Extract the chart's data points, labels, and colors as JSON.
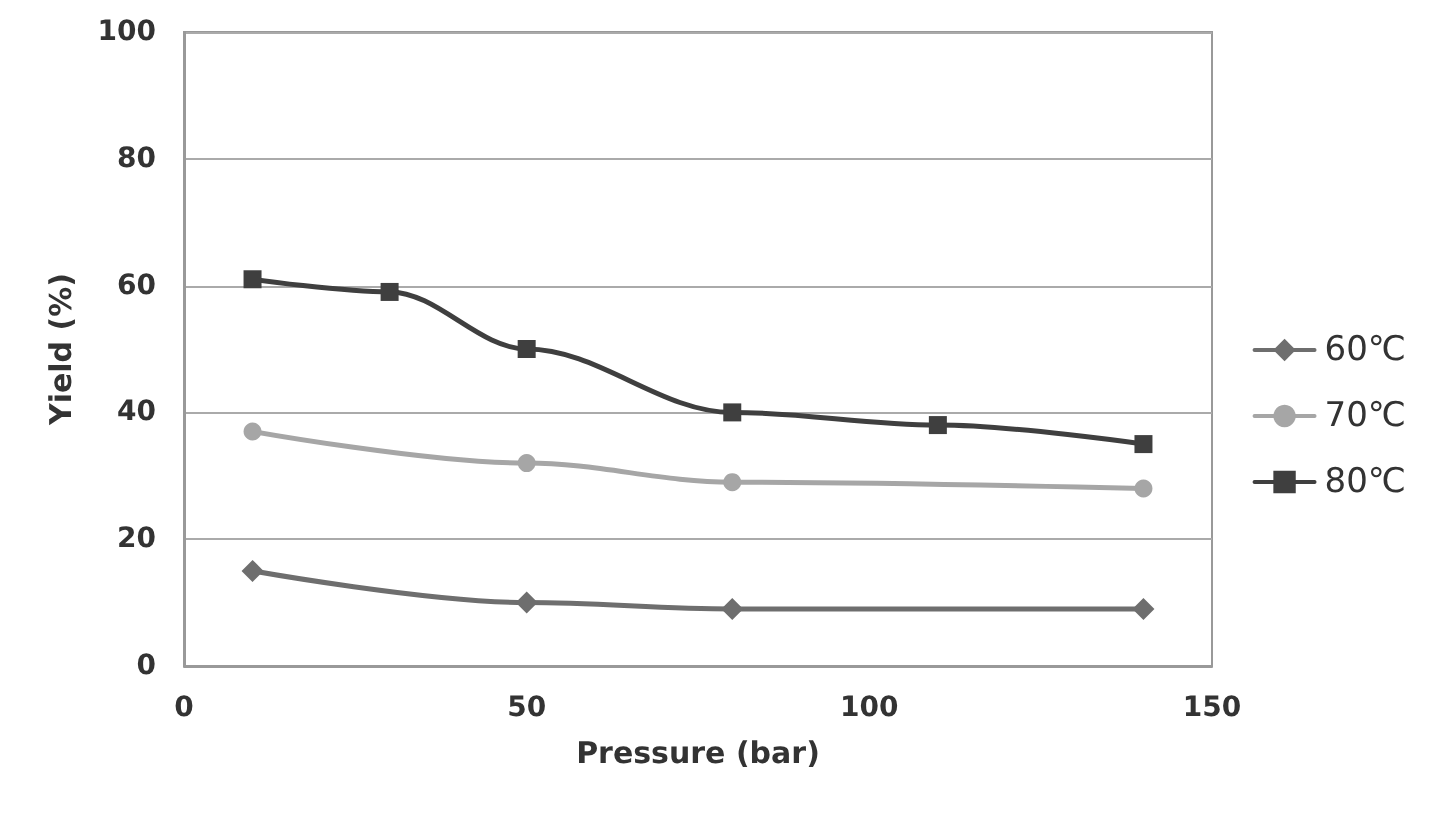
{
  "chart_data": {
    "type": "line",
    "xlabel": "Pressure (bar)",
    "ylabel": "Yield (%)",
    "xlim": [
      0,
      150
    ],
    "xticks": [
      0,
      50,
      100,
      150
    ],
    "ylim": [
      0,
      100
    ],
    "yticks": [
      0,
      20,
      40,
      60,
      80,
      100
    ],
    "grid": "y",
    "legend": "right",
    "line_style": "solid",
    "series": [
      {
        "name": "60℃",
        "color": "#6e6e6e",
        "marker": "diamond",
        "x": [
          10,
          50,
          80,
          140
        ],
        "values": [
          15,
          10,
          9,
          9
        ]
      },
      {
        "name": "70℃",
        "color": "#a6a6a6",
        "marker": "circle",
        "x": [
          10,
          50,
          80,
          140
        ],
        "values": [
          37,
          32,
          29,
          28
        ]
      },
      {
        "name": "80℃",
        "color": "#3f3f3f",
        "marker": "square",
        "x": [
          10,
          30,
          50,
          80,
          110,
          140
        ],
        "values": [
          61,
          59,
          50,
          40,
          38,
          35
        ]
      }
    ]
  }
}
